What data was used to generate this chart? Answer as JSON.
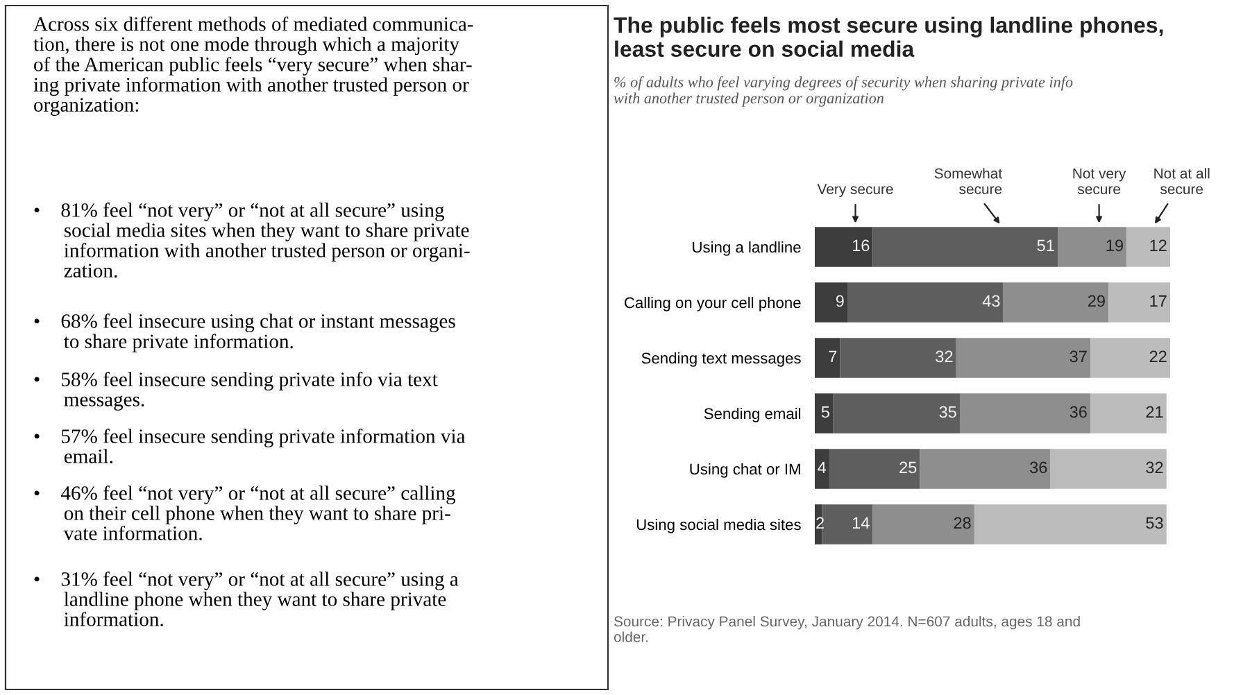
{
  "chart_data": {
    "type": "bar",
    "orientation": "horizontal",
    "stacked": true,
    "data_labels": true,
    "legend": "top",
    "grid": false,
    "title": "The public feels most secure using landline phones,\nleast secure on social media",
    "subtitle": "% of adults who feel varying degrees of security when sharing private info\nwith another trusted person or organization",
    "categories": [
      "Using a landline",
      "Calling on your cell phone",
      "Sending text messages",
      "Sending email",
      "Using chat or IM",
      "Using social media sites"
    ],
    "series": [
      {
        "name": "Very secure",
        "color": "#3c3c3c",
        "values": [
          16,
          9,
          7,
          5,
          4,
          2
        ]
      },
      {
        "name": "Somewhat\nsecure",
        "color": "#5e5e5e",
        "values": [
          51,
          43,
          32,
          35,
          25,
          14
        ]
      },
      {
        "name": "Not very\nsecure",
        "color": "#8e8e8e",
        "values": [
          19,
          29,
          37,
          36,
          36,
          28
        ]
      },
      {
        "name": "Not at all\nsecure",
        "color": "#bcbcbc",
        "values": [
          12,
          17,
          22,
          21,
          32,
          53
        ]
      }
    ],
    "annotations": [
      "Across six different methods of mediated communica-\ntion, there is not one mode through which a majority\nof the American public feels “very secure” when shar-\ning private information with another trusted person or\norganization:",
      "•    81% feel “not very” or “not at all secure” using\n      social media sites when they want to share private\n      information with another trusted person or organi-\n      zation.",
      "•    68% feel insecure using chat or instant messages\n      to share private information.",
      "•    58% feel insecure sending private info via text\n      messages.",
      "•    57% feel insecure sending private information via\n      email.",
      "•    46% feel “not very” or “not at all secure” calling\n      on their cell phone when they want to share pri-\n      vate information.",
      "•    31% feel “not very” or “not at all secure” using a\n      landline phone when they want to share private\n      information.",
      "Source: Privacy Panel Survey, January 2014. N=607 adults, ages 18 and\nolder."
    ]
  }
}
